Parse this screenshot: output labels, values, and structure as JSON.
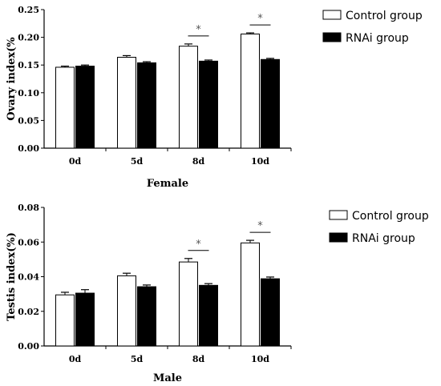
{
  "chart_data": [
    {
      "type": "bar",
      "categories": [
        "0d",
        "5d",
        "8d",
        "10d"
      ],
      "series": [
        {
          "name": "Control group",
          "color": "#ffffff",
          "values": [
            0.146,
            0.164,
            0.184,
            0.206
          ],
          "errors": [
            0.002,
            0.003,
            0.004,
            0.002
          ]
        },
        {
          "name": "RNAi group",
          "color": "#000000",
          "values": [
            0.148,
            0.154,
            0.157,
            0.16
          ],
          "errors": [
            0.002,
            0.002,
            0.002,
            0.002
          ]
        }
      ],
      "xlabel": "Female",
      "ylabel": "Ovary index(%",
      "ylim": [
        0,
        0.25
      ],
      "yticks": [
        "0.00",
        "0.05",
        "0.10",
        "0.15",
        "0.20",
        "0.25"
      ],
      "yticks_values": [
        0,
        0.05,
        0.1,
        0.15,
        0.2,
        0.25
      ],
      "significance": [
        {
          "category": "8d",
          "label": "*"
        },
        {
          "category": "10d",
          "label": "*"
        }
      ],
      "legend_position": "right"
    },
    {
      "type": "bar",
      "categories": [
        "0d",
        "5d",
        "8d",
        "10d"
      ],
      "series": [
        {
          "name": "Control group",
          "color": "#ffffff",
          "values": [
            0.0295,
            0.0405,
            0.0485,
            0.0595
          ],
          "errors": [
            0.0015,
            0.0015,
            0.002,
            0.0015
          ]
        },
        {
          "name": "RNAi group",
          "color": "#000000",
          "values": [
            0.0305,
            0.0342,
            0.035,
            0.0388
          ],
          "errors": [
            0.002,
            0.001,
            0.001,
            0.001
          ]
        }
      ],
      "xlabel": "Male",
      "ylabel": "Testis index(%)",
      "ylim": [
        0,
        0.08
      ],
      "yticks": [
        "0.00",
        "0.02",
        "0.04",
        "0.06",
        "0.08"
      ],
      "yticks_values": [
        0,
        0.02,
        0.04,
        0.06,
        0.08
      ],
      "significance": [
        {
          "category": "8d",
          "label": "*"
        },
        {
          "category": "10d",
          "label": "*"
        }
      ],
      "legend_position": "right"
    }
  ]
}
